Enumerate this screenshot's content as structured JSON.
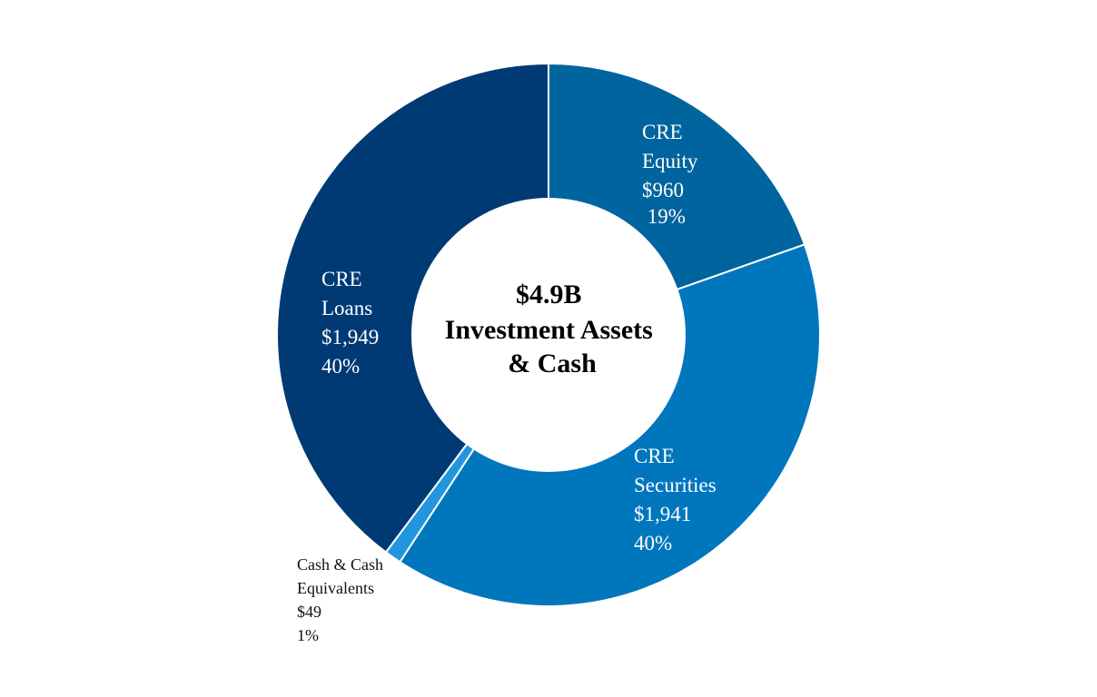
{
  "chart_data": {
    "type": "pie",
    "donut": true,
    "title": "",
    "center_label": {
      "lines": [
        "$4.9B",
        "Investment Assets",
        "& Cash"
      ]
    },
    "slices": [
      {
        "name": "CRE Equity",
        "label_lines": [
          "CRE",
          "Equity",
          "$960",
          " 19%"
        ],
        "value": 960,
        "percent": "19%",
        "color": "#00649e"
      },
      {
        "name": "CRE Securities",
        "label_lines": [
          "CRE",
          "Securities",
          "$1,941",
          "40%"
        ],
        "value": 1941,
        "percent": "40%",
        "color": "#0076bd"
      },
      {
        "name": "Cash & Cash Equivalents",
        "label_lines": [
          "Cash & Cash",
          "Equivalents",
          "$49",
          "1%"
        ],
        "value": 49,
        "percent": "1%",
        "color": "#2196de"
      },
      {
        "name": "CRE Loans",
        "label_lines": [
          "CRE",
          "Loans",
          "$1,949",
          "40%"
        ],
        "value": 1949,
        "percent": "40%",
        "color": "#003a75"
      }
    ],
    "legend": "none"
  }
}
